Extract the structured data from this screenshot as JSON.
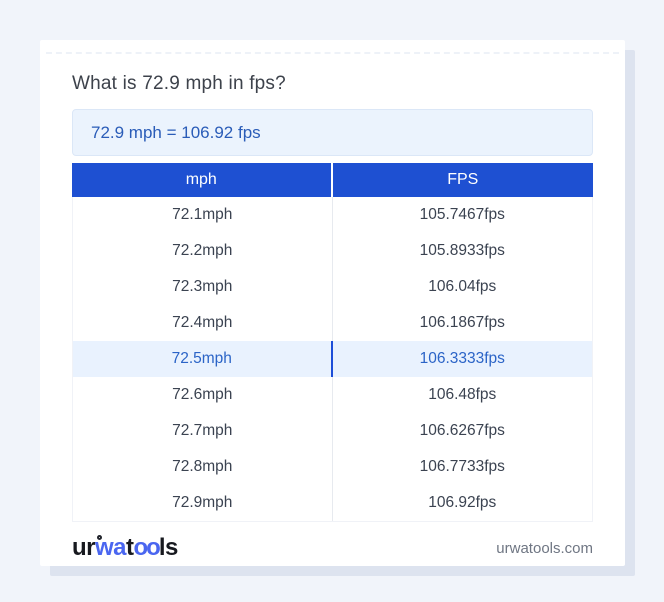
{
  "page": {
    "title": "What is 72.9 mph in fps?"
  },
  "answer": {
    "text": "72.9 mph = 106.92 fps"
  },
  "table": {
    "headers": [
      "mph",
      "FPS"
    ],
    "rows": [
      {
        "mph": "72.1mph",
        "fps": "105.7467fps",
        "highlight": false
      },
      {
        "mph": "72.2mph",
        "fps": "105.8933fps",
        "highlight": false
      },
      {
        "mph": "72.3mph",
        "fps": "106.04fps",
        "highlight": false
      },
      {
        "mph": "72.4mph",
        "fps": "106.1867fps",
        "highlight": false
      },
      {
        "mph": "72.5mph",
        "fps": "106.3333fps",
        "highlight": true
      },
      {
        "mph": "72.6mph",
        "fps": "106.48fps",
        "highlight": false
      },
      {
        "mph": "72.7mph",
        "fps": "106.6267fps",
        "highlight": false
      },
      {
        "mph": "72.8mph",
        "fps": "106.7733fps",
        "highlight": false
      },
      {
        "mph": "72.9mph",
        "fps": "106.92fps",
        "highlight": false
      }
    ]
  },
  "footer": {
    "logo": {
      "p1": "ur",
      "p2": "wa",
      "p3": "t",
      "p4": "oo",
      "p5": "ls"
    },
    "domain": "urwatools.com"
  },
  "colors": {
    "page_background": "#f1f4fa",
    "card_background": "#ffffff",
    "card_shadow": "#dde3ef",
    "header_blue": "#1e50d2",
    "answer_box_background": "#ebf3fd",
    "answer_text_blue": "#2a5cb8",
    "highlight_row_background": "#e9f2fe",
    "highlight_text_blue": "#2b64c7",
    "highlight_divider_blue": "#1d4ed8",
    "logo_blue": "#4a66f0",
    "body_text": "#3b4351",
    "domain_text": "#6f7683"
  }
}
